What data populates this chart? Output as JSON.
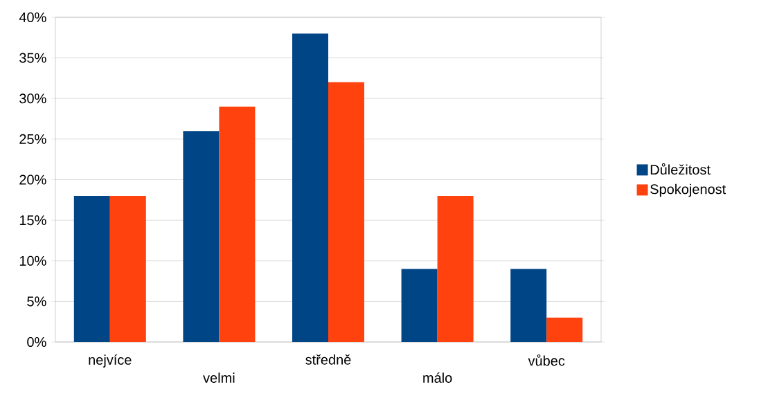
{
  "chart_data": {
    "type": "bar",
    "categories": [
      "nejvíce",
      "velmi",
      "středně",
      "málo",
      "vůbec"
    ],
    "series": [
      {
        "name": "Důležitost",
        "color": "#004586",
        "values": [
          18,
          26,
          38,
          9,
          9
        ]
      },
      {
        "name": "Spokojenost",
        "color": "#ff420e",
        "values": [
          18,
          29,
          32,
          18,
          3
        ]
      }
    ],
    "ylim": [
      0,
      40
    ],
    "yticks": [
      {
        "value": 0,
        "label": "0%"
      },
      {
        "value": 5,
        "label": "5%"
      },
      {
        "value": 10,
        "label": "10%"
      },
      {
        "value": 15,
        "label": "15%"
      },
      {
        "value": 20,
        "label": "20%"
      },
      {
        "value": 25,
        "label": "25%"
      },
      {
        "value": 30,
        "label": "30%"
      },
      {
        "value": 35,
        "label": "35%"
      },
      {
        "value": 40,
        "label": "40%"
      }
    ],
    "grid": "y",
    "legend": "right"
  }
}
